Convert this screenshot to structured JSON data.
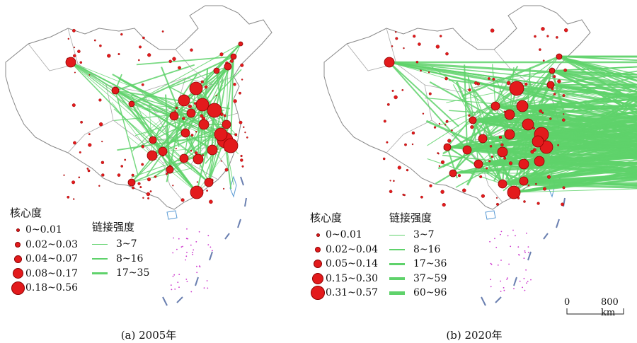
{
  "panels": [
    {
      "caption": "(a) 2005年",
      "node_legend": {
        "title": "核心度",
        "items": [
          "0~0.01",
          "0.02~0.03",
          "0.04~0.07",
          "0.08~0.17",
          "0.18~0.56"
        ]
      },
      "link_legend": {
        "title": "链接强度",
        "items": [
          "3~7",
          "8~16",
          "17~35"
        ]
      }
    },
    {
      "caption": "(b) 2020年",
      "node_legend": {
        "title": "核心度",
        "items": [
          "0~0.01",
          "0.02~0.04",
          "0.05~0.14",
          "0.15~0.30",
          "0.31~0.57"
        ]
      },
      "link_legend": {
        "title": "链接强度",
        "items": [
          "3~7",
          "8~16",
          "17~36",
          "37~59",
          "60~96"
        ]
      }
    }
  ],
  "scale_bar": {
    "zero": "0",
    "distance": "800 km"
  },
  "colors": {
    "node": "#e31a1c",
    "node_stroke": "#8b0000",
    "link": "#5fd26b",
    "boundary": "#888888",
    "islands": "#cc33cc"
  }
}
